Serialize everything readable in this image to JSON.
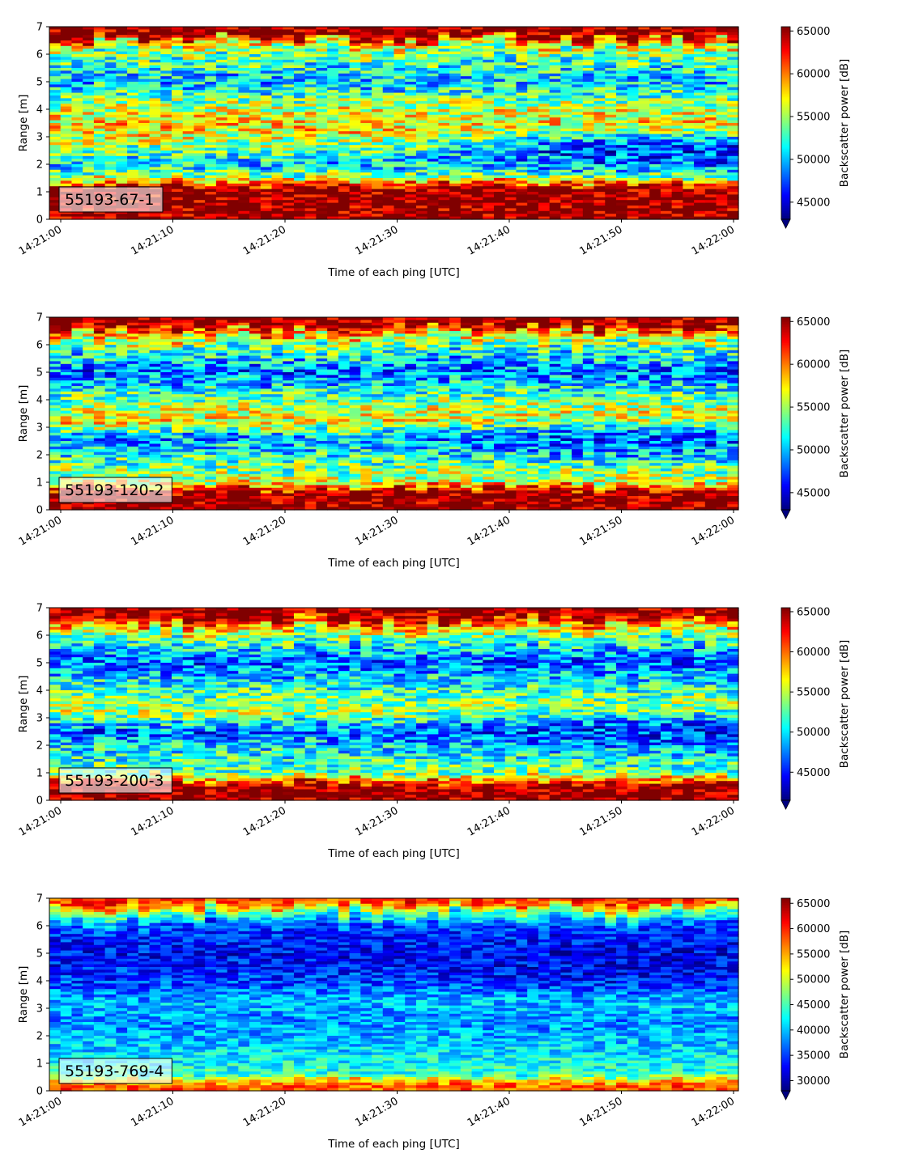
{
  "chart_data": [
    {
      "type": "heatmap",
      "label": "55193-67-1",
      "xlabel": "Time of each ping [UTC]",
      "ylabel": "Range [m]",
      "colorbar_label": "Backscatter power [dB]",
      "colorbar_ticks": [
        45000,
        50000,
        55000,
        60000,
        65000
      ],
      "color_range": [
        43000,
        65500
      ],
      "colormap": "jet",
      "ylim": [
        0,
        7
      ],
      "yticks": [
        0,
        1,
        2,
        3,
        4,
        5,
        6,
        7
      ],
      "xticks": [
        "14:21:00",
        "14:21:10",
        "14:21:20",
        "14:21:30",
        "14:21:40",
        "14:21:50",
        "14:22:00"
      ],
      "profile": [
        {
          "range": 0.2,
          "value": 65500
        },
        {
          "range": 1.1,
          "value": 65500
        },
        {
          "range": 1.5,
          "value": 55000
        },
        {
          "range": 2.0,
          "value": 50500
        },
        {
          "range": 2.5,
          "value": 53500
        },
        {
          "range": 3.3,
          "value": 58000
        },
        {
          "range": 4.0,
          "value": 56000
        },
        {
          "range": 5.0,
          "value": 50000
        },
        {
          "range": 6.0,
          "value": 54000
        },
        {
          "range": 6.5,
          "value": 58500
        },
        {
          "range": 6.6,
          "value": 65500
        },
        {
          "range": 7.0,
          "value": 65500
        }
      ],
      "trend_late": {
        "range": 2.5,
        "value": 46500
      },
      "noise": 4500
    },
    {
      "type": "heatmap",
      "label": "55193-120-2",
      "xlabel": "Time of each ping [UTC]",
      "ylabel": "Range [m]",
      "colorbar_label": "Backscatter power [dB]",
      "colorbar_ticks": [
        45000,
        50000,
        55000,
        60000,
        65000
      ],
      "color_range": [
        43000,
        65500
      ],
      "colormap": "jet",
      "ylim": [
        0,
        7
      ],
      "yticks": [
        0,
        1,
        2,
        3,
        4,
        5,
        6,
        7
      ],
      "xticks": [
        "14:21:00",
        "14:21:10",
        "14:21:20",
        "14:21:30",
        "14:21:40",
        "14:21:50",
        "14:22:00"
      ],
      "profile": [
        {
          "range": 0.1,
          "value": 65500
        },
        {
          "range": 0.6,
          "value": 65500
        },
        {
          "range": 1.0,
          "value": 56000
        },
        {
          "range": 2.0,
          "value": 52000
        },
        {
          "range": 2.6,
          "value": 49000
        },
        {
          "range": 3.2,
          "value": 57500
        },
        {
          "range": 4.0,
          "value": 54000
        },
        {
          "range": 5.0,
          "value": 48000
        },
        {
          "range": 6.0,
          "value": 54000
        },
        {
          "range": 6.5,
          "value": 60000
        },
        {
          "range": 6.7,
          "value": 65500
        },
        {
          "range": 7.0,
          "value": 65500
        }
      ],
      "trend_late": {
        "range": 2.5,
        "value": 48000
      },
      "noise": 4500
    },
    {
      "type": "heatmap",
      "label": "55193-200-3",
      "xlabel": "Time of each ping [UTC]",
      "ylabel": "Range [m]",
      "colorbar_label": "Backscatter power [dB]",
      "colorbar_ticks": [
        45000,
        50000,
        55000,
        60000,
        65000
      ],
      "color_range": [
        41500,
        65500
      ],
      "colormap": "jet",
      "ylim": [
        0,
        7
      ],
      "yticks": [
        0,
        1,
        2,
        3,
        4,
        5,
        6,
        7
      ],
      "xticks": [
        "14:21:00",
        "14:21:10",
        "14:21:20",
        "14:21:30",
        "14:21:40",
        "14:21:50",
        "14:22:00"
      ],
      "profile": [
        {
          "range": 0.1,
          "value": 65500
        },
        {
          "range": 0.5,
          "value": 65500
        },
        {
          "range": 1.0,
          "value": 53000
        },
        {
          "range": 2.0,
          "value": 50000
        },
        {
          "range": 2.5,
          "value": 46500
        },
        {
          "range": 3.2,
          "value": 55000
        },
        {
          "range": 4.0,
          "value": 52000
        },
        {
          "range": 5.0,
          "value": 46500
        },
        {
          "range": 6.0,
          "value": 53000
        },
        {
          "range": 6.5,
          "value": 60000
        },
        {
          "range": 6.7,
          "value": 65500
        },
        {
          "range": 7.0,
          "value": 65500
        }
      ],
      "trend_late": {
        "range": 2.5,
        "value": 46000
      },
      "noise": 4500
    },
    {
      "type": "heatmap",
      "label": "55193-769-4",
      "xlabel": "Time of each ping [UTC]",
      "ylabel": "Range [m]",
      "colorbar_label": "Backscatter power [dB]",
      "colorbar_ticks": [
        30000,
        35000,
        40000,
        45000,
        50000,
        55000,
        60000,
        65000
      ],
      "color_range": [
        28000,
        66000
      ],
      "colormap": "jet",
      "ylim": [
        0,
        7
      ],
      "yticks": [
        0,
        1,
        2,
        3,
        4,
        5,
        6,
        7
      ],
      "xticks": [
        "14:21:00",
        "14:21:10",
        "14:21:20",
        "14:21:30",
        "14:21:40",
        "14:21:50",
        "14:22:00"
      ],
      "profile": [
        {
          "range": 0.1,
          "value": 58000
        },
        {
          "range": 0.3,
          "value": 56000
        },
        {
          "range": 0.6,
          "value": 44000
        },
        {
          "range": 1.5,
          "value": 41000
        },
        {
          "range": 2.5,
          "value": 38000
        },
        {
          "range": 3.2,
          "value": 40000
        },
        {
          "range": 4.0,
          "value": 35000
        },
        {
          "range": 5.0,
          "value": 32500
        },
        {
          "range": 6.0,
          "value": 35000
        },
        {
          "range": 6.5,
          "value": 46000
        },
        {
          "range": 6.8,
          "value": 58000
        },
        {
          "range": 7.0,
          "value": 60000
        }
      ],
      "trend_late": {
        "range": 4.5,
        "value": 32000
      },
      "noise": 4500
    }
  ]
}
